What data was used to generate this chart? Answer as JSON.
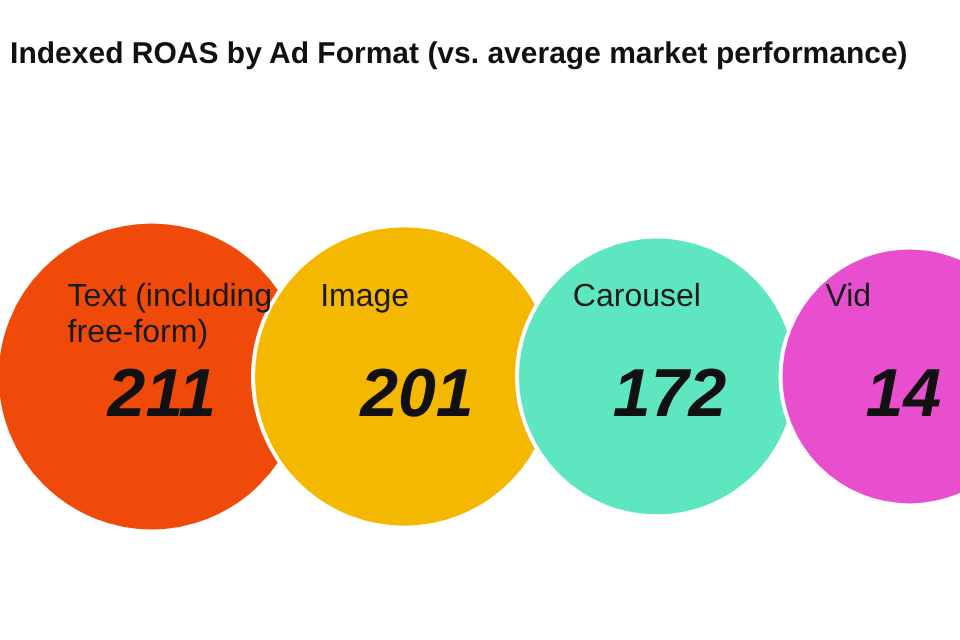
{
  "chart_data": {
    "type": "other",
    "title": "Indexed ROAS by Ad Format (vs. average market performance)",
    "categories": [
      "Text (including\nfree-form)",
      "Image",
      "Carousel",
      "Vid"
    ],
    "values": [
      211,
      201,
      172,
      null
    ],
    "value_labels": [
      "211",
      "201",
      "172",
      "14"
    ],
    "colors": [
      "#f04a0a",
      "#f5b800",
      "#5ee6c0",
      "#e84fcf"
    ]
  }
}
